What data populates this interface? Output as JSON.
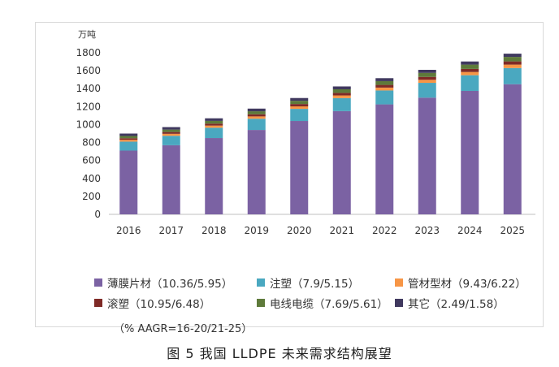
{
  "chart_data": {
    "type": "bar",
    "stacked": true,
    "unit_label": "万吨",
    "categories": [
      "2016",
      "2017",
      "2018",
      "2019",
      "2020",
      "2021",
      "2022",
      "2023",
      "2024",
      "2025"
    ],
    "ylim": [
      0,
      1800
    ],
    "yticks": [
      0,
      200,
      400,
      600,
      800,
      1000,
      1200,
      1400,
      1600,
      1800
    ],
    "grid": false,
    "legend_position": "bottom",
    "series": [
      {
        "name": "薄膜片材（10.36/5.95）",
        "color": "#7b62a3",
        "values": [
          710,
          770,
          850,
          940,
          1040,
          1150,
          1225,
          1300,
          1375,
          1450
        ]
      },
      {
        "name": "注塑（7.9/5.15）",
        "color": "#4aa8c0",
        "values": [
          100,
          105,
          115,
          125,
          135,
          145,
          155,
          165,
          175,
          180
        ]
      },
      {
        "name": "管材型材（9.43/6.22）",
        "color": "#f79646",
        "values": [
          20,
          22,
          24,
          26,
          28,
          30,
          32,
          34,
          36,
          38
        ]
      },
      {
        "name": "滚塑（10.95/6.48）",
        "color": "#7f2a26",
        "values": [
          18,
          20,
          22,
          24,
          26,
          28,
          30,
          32,
          34,
          36
        ]
      },
      {
        "name": "电线电缆（7.69/5.61）",
        "color": "#5e7a3a",
        "values": [
          25,
          27,
          30,
          33,
          36,
          40,
          42,
          45,
          48,
          50
        ]
      },
      {
        "name": "其它（2.49/1.58）",
        "color": "#40395f",
        "values": [
          27,
          28,
          29,
          30,
          31,
          32,
          33,
          34,
          35,
          36
        ]
      }
    ],
    "note": "（% AAGR=16-20/21-25）"
  },
  "caption": "图 5   我国 LLDPE 未来需求结构展望"
}
